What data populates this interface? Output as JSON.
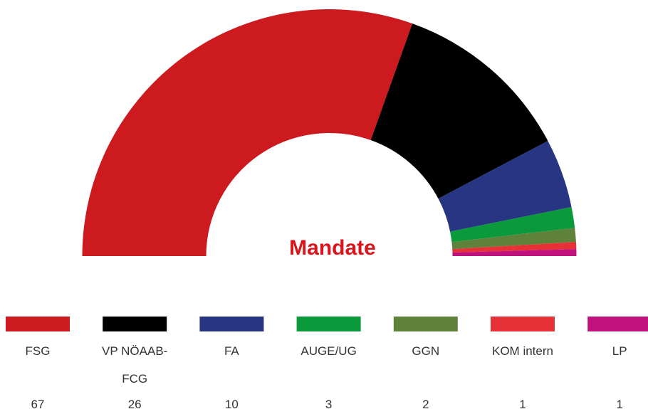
{
  "chart_data": {
    "type": "semi-donut",
    "title": "Mandate",
    "categories": [
      "FSG",
      "VP NÖAAB-FCG",
      "FA",
      "AUGE/UG",
      "GGN",
      "KOM intern",
      "LP"
    ],
    "values": [
      67,
      26,
      10,
      3,
      2,
      1,
      1
    ],
    "colors": [
      "#cc1a1e",
      "#000000",
      "#283583",
      "#0a9a3c",
      "#5e823a",
      "#e63137",
      "#c0127f"
    ]
  }
}
